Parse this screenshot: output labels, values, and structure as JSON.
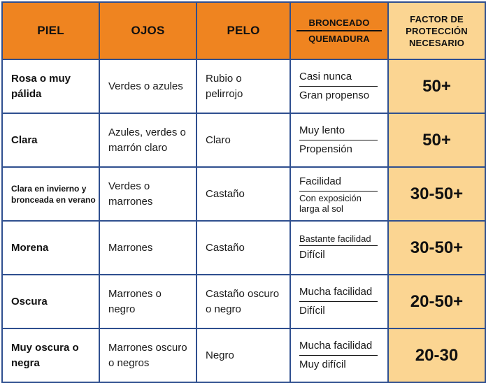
{
  "header": {
    "piel": "PIEL",
    "ojos": "OJOS",
    "pelo": "PELO",
    "bronceado": "BRONCEADO",
    "quemadura": "QUEMADURA",
    "factor": "FACTOR DE PROTECCIÓN NECESARIO"
  },
  "rows": [
    {
      "piel": "Rosa o muy pálida",
      "ojos": "Verdes o azules",
      "pelo": "Rubio o pelirrojo",
      "bronceado": "Casi nunca",
      "quemadura": "Gran propenso",
      "factor": "50+"
    },
    {
      "piel": "Clara",
      "ojos": "Azules, verdes o marrón claro",
      "pelo": "Claro",
      "bronceado": "Muy lento",
      "quemadura": "Propensión",
      "factor": "50+"
    },
    {
      "piel": "Clara en invierno y bronceada en verano",
      "ojos": "Verdes o marrones",
      "pelo": "Castaño",
      "bronceado": "Facilidad",
      "quemadura": "Con exposición larga al sol",
      "factor": "30-50+"
    },
    {
      "piel": "Morena",
      "ojos": "Marrones",
      "pelo": "Castaño",
      "bronceado": "Bastante facilidad",
      "quemadura": "Difícil",
      "factor": "30-50+"
    },
    {
      "piel": "Oscura",
      "ojos": "Marrones o negro",
      "pelo": "Castaño oscuro o negro",
      "bronceado": "Mucha facilidad",
      "quemadura": "Difícil",
      "factor": "20-50+"
    },
    {
      "piel": "Muy oscura o negra",
      "ojos": "Marrones oscuro o negros",
      "pelo": "Negro",
      "bronceado": "Mucha facilidad",
      "quemadura": "Muy difícil",
      "factor": "20-30"
    }
  ],
  "colors": {
    "header_orange": "#ef8420",
    "factor_peach": "#fbd592",
    "border_blue": "#2f4f8f"
  }
}
